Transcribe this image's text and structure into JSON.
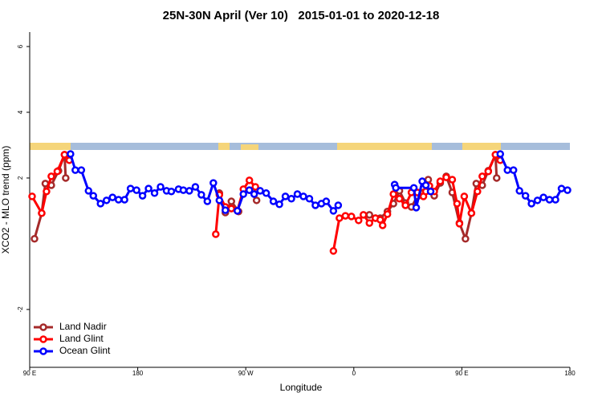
{
  "chart_data": {
    "type": "line",
    "title": "25N-30N April (Ver 10)   2015-01-01 to 2020-12-18",
    "xlabel": "Longitude",
    "ylabel": "XCO2 - MLO trend (ppm)",
    "xlim": [
      90,
      540
    ],
    "ylim": [
      -3.76,
      6.44
    ],
    "xticks": [
      {
        "value": 90,
        "label": "90 E"
      },
      180,
      {
        "value": 270,
        "label": "90 W"
      },
      {
        "value": 360,
        "label": "0"
      },
      {
        "value": 450,
        "label": "90 E"
      },
      {
        "value": 540,
        "label": "180"
      }
    ],
    "yticks": [
      -2,
      2,
      4,
      6
    ],
    "legend": "bottom-left",
    "series": [
      {
        "name": "Land Nadir",
        "color": "#a52a2a",
        "x": [
          94,
          100,
          103,
          108,
          114,
          119,
          120,
          184,
          248,
          253,
          258,
          264,
          268,
          273,
          279,
          300,
          373,
          378,
          382,
          388,
          393,
          398,
          403,
          408,
          413,
          418,
          422,
          427,
          432,
          437,
          442,
          448,
          453,
          458,
          462,
          467,
          472,
          478,
          479
        ],
        "values": [
          0.15,
          0.93,
          1.83,
          1.78,
          2.22,
          2.71,
          2.0,
          null,
          1.54,
          0.95,
          1.29,
          0.98,
          null,
          1.63,
          1.32,
          null,
          0.88,
          0.78,
          0.78,
          0.98,
          1.22,
          1.61,
          1.24,
          1.12,
          1.44,
          1.56,
          1.95,
          1.46,
          1.85,
          2.05,
          1.56,
          0.63,
          0.15,
          0.93,
          1.83,
          1.78,
          2.22,
          2.71,
          2.0
        ]
      },
      {
        "name": "Land Glint",
        "color": "#ff0000",
        "x": [
          92,
          100,
          104,
          108,
          113,
          119,
          123,
          184,
          245,
          248,
          253,
          258,
          263,
          268,
          273,
          278,
          300,
          343,
          348,
          353,
          358,
          364,
          368,
          373,
          378,
          382,
          384,
          388,
          393,
          398,
          403,
          408,
          413,
          418,
          420,
          423,
          427,
          432,
          437,
          442,
          446,
          448,
          452,
          458,
          463,
          467,
          472,
          478,
          482
        ],
        "values": [
          1.44,
          0.93,
          1.59,
          2.05,
          2.2,
          2.71,
          2.54,
          null,
          0.29,
          1.49,
          1.12,
          1.07,
          1.0,
          1.66,
          1.93,
          1.73,
          null,
          -0.22,
          0.78,
          0.85,
          0.83,
          0.71,
          0.88,
          0.63,
          0.78,
          0.73,
          0.56,
          0.9,
          1.51,
          1.37,
          1.17,
          1.56,
          1.56,
          1.44,
          1.59,
          1.76,
          1.59,
          1.9,
          2.02,
          1.95,
          1.22,
          0.61,
          1.44,
          0.93,
          1.59,
          2.05,
          2.2,
          2.71,
          2.54
        ]
      },
      {
        "name": "Ocean Glint",
        "color": "#0000ff",
        "x": [
          124,
          128,
          133,
          139,
          143,
          149,
          154,
          159,
          164,
          169,
          174,
          179,
          184,
          189,
          194,
          199,
          204,
          208,
          214,
          218,
          223,
          228,
          233,
          238,
          243,
          248,
          253,
          258,
          263,
          268,
          273,
          277,
          282,
          287,
          293,
          298,
          303,
          308,
          313,
          318,
          323,
          328,
          333,
          337,
          343,
          347,
          370,
          394,
          395,
          410,
          412,
          417,
          420,
          424,
          450,
          482,
          488,
          493,
          498,
          503,
          508,
          513,
          518,
          523,
          528,
          533,
          538
        ],
        "values": [
          2.73,
          2.24,
          2.24,
          1.61,
          1.46,
          1.22,
          1.32,
          1.41,
          1.34,
          1.34,
          1.68,
          1.63,
          1.46,
          1.68,
          1.54,
          1.73,
          1.61,
          1.59,
          1.66,
          1.63,
          1.61,
          1.73,
          1.49,
          1.29,
          1.85,
          1.32,
          1.02,
          null,
          1.0,
          1.51,
          1.63,
          1.51,
          1.61,
          1.54,
          1.29,
          1.2,
          1.44,
          1.37,
          1.51,
          1.44,
          1.37,
          1.17,
          1.22,
          1.29,
          1.0,
          1.17,
          null,
          1.8,
          1.7,
          1.7,
          1.1,
          1.9,
          1.78,
          1.59,
          null,
          2.73,
          2.24,
          2.24,
          1.61,
          1.46,
          1.22,
          1.32,
          1.41,
          1.34,
          1.34,
          1.68,
          1.63
        ]
      }
    ]
  }
}
